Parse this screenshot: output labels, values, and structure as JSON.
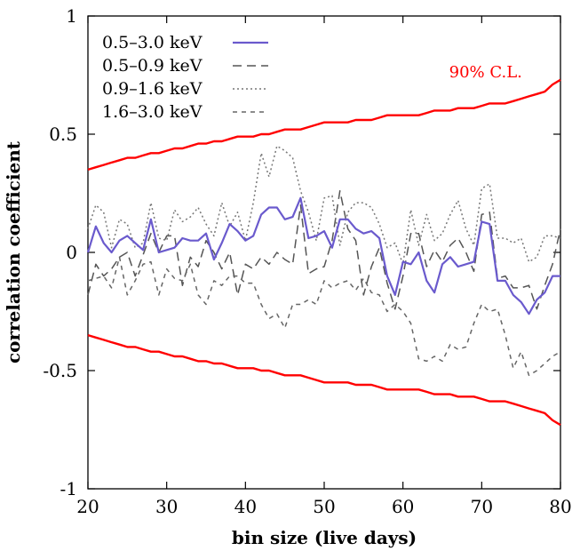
{
  "chart_data": {
    "type": "line",
    "title": "",
    "xlabel": "bin size (live days)",
    "ylabel": "correlation coefficient",
    "xlim": [
      20,
      80
    ],
    "ylim": [
      -1,
      1
    ],
    "xticks": [
      20,
      30,
      40,
      50,
      60,
      70,
      80
    ],
    "xtick_labels": [
      "20",
      "30",
      "40",
      "50",
      "60",
      "70",
      "80"
    ],
    "yticks": [
      -1,
      -0.5,
      0,
      0.5,
      1
    ],
    "ytick_labels": [
      "-1",
      "-0.5",
      "0",
      "0.5",
      "1"
    ],
    "grid": false,
    "legend_position": "top-left",
    "annotation": {
      "text": "90% C.L.",
      "x": 70.5,
      "y": 0.74,
      "color": "#ff0000"
    },
    "x": [
      20,
      21,
      22,
      23,
      24,
      25,
      26,
      27,
      28,
      29,
      30,
      31,
      32,
      33,
      34,
      35,
      36,
      37,
      38,
      39,
      40,
      41,
      42,
      43,
      44,
      45,
      46,
      47,
      48,
      49,
      50,
      51,
      52,
      53,
      54,
      55,
      56,
      57,
      58,
      59,
      60,
      61,
      62,
      63,
      64,
      65,
      66,
      67,
      68,
      69,
      70,
      71,
      72,
      73,
      74,
      75,
      76,
      77,
      78,
      79,
      80
    ],
    "series": [
      {
        "name": "0.5–3.0 keV",
        "color": "#6a5acd",
        "dash": "solid",
        "values": [
          0.0,
          0.11,
          0.04,
          0.0,
          0.05,
          0.07,
          0.04,
          0.01,
          0.14,
          0.0,
          0.01,
          0.02,
          0.06,
          0.05,
          0.05,
          0.08,
          -0.03,
          0.04,
          0.12,
          0.09,
          0.05,
          0.07,
          0.16,
          0.19,
          0.19,
          0.14,
          0.15,
          0.23,
          0.06,
          0.07,
          0.09,
          0.02,
          0.14,
          0.14,
          0.1,
          0.08,
          0.09,
          0.06,
          -0.1,
          -0.18,
          -0.04,
          -0.05,
          0.0,
          -0.12,
          -0.17,
          -0.05,
          -0.02,
          -0.06,
          -0.05,
          -0.04,
          0.13,
          0.12,
          -0.12,
          -0.12,
          -0.18,
          -0.21,
          -0.26,
          -0.2,
          -0.17,
          -0.1,
          -0.1
        ]
      },
      {
        "name": "0.5–0.9 keV",
        "color": "#555555",
        "dash": "long-dash",
        "values": [
          -0.18,
          -0.05,
          -0.1,
          -0.07,
          -0.02,
          0.0,
          -0.1,
          -0.01,
          0.08,
          0.0,
          0.07,
          0.07,
          -0.14,
          -0.02,
          -0.06,
          0.05,
          0.0,
          -0.07,
          0.0,
          -0.18,
          -0.05,
          -0.07,
          -0.02,
          -0.05,
          0.0,
          -0.03,
          -0.05,
          0.2,
          -0.09,
          -0.07,
          -0.06,
          0.05,
          0.26,
          0.1,
          0.05,
          -0.18,
          -0.06,
          0.02,
          -0.13,
          -0.24,
          -0.1,
          0.08,
          0.08,
          -0.06,
          0.01,
          -0.04,
          0.03,
          0.06,
          0.0,
          -0.08,
          0.16,
          0.17,
          -0.11,
          -0.1,
          -0.15,
          -0.15,
          -0.14,
          -0.24,
          -0.14,
          -0.05,
          0.1
        ]
      },
      {
        "name": "0.9–1.6 keV",
        "color": "#777777",
        "dash": "dotted",
        "values": [
          0.1,
          0.2,
          0.17,
          0.02,
          0.14,
          0.12,
          0.02,
          0.04,
          0.21,
          0.06,
          0.05,
          0.18,
          0.13,
          0.15,
          0.19,
          0.12,
          0.07,
          0.21,
          0.11,
          0.17,
          0.05,
          0.21,
          0.42,
          0.32,
          0.45,
          0.43,
          0.4,
          0.26,
          0.17,
          0.05,
          0.23,
          0.24,
          0.03,
          0.17,
          0.21,
          0.21,
          0.19,
          0.12,
          0.02,
          0.04,
          -0.05,
          0.18,
          0.03,
          0.16,
          0.05,
          0.08,
          0.16,
          0.22,
          0.1,
          0.03,
          0.27,
          0.29,
          0.06,
          0.06,
          0.04,
          0.06,
          -0.04,
          -0.02,
          0.07,
          0.07,
          0.06
        ]
      },
      {
        "name": "1.6–3.0 keV",
        "color": "#666666",
        "dash": "short-dash",
        "values": [
          -0.12,
          -0.11,
          -0.1,
          -0.15,
          -0.02,
          -0.18,
          -0.12,
          -0.05,
          -0.04,
          -0.18,
          -0.07,
          -0.11,
          -0.12,
          -0.05,
          -0.18,
          -0.22,
          -0.12,
          -0.14,
          -0.1,
          -0.1,
          -0.13,
          -0.13,
          -0.22,
          -0.28,
          -0.26,
          -0.32,
          -0.22,
          -0.22,
          -0.2,
          -0.22,
          -0.12,
          -0.15,
          -0.13,
          -0.12,
          -0.16,
          -0.11,
          -0.17,
          -0.18,
          -0.25,
          -0.22,
          -0.25,
          -0.3,
          -0.45,
          -0.46,
          -0.44,
          -0.46,
          -0.39,
          -0.41,
          -0.4,
          -0.3,
          -0.22,
          -0.25,
          -0.24,
          -0.35,
          -0.49,
          -0.42,
          -0.52,
          -0.5,
          -0.47,
          -0.44,
          -0.42
        ]
      },
      {
        "name": "90% C.L. upper",
        "color": "#ff0000",
        "dash": "solid-thick",
        "values": [
          0.35,
          0.36,
          0.37,
          0.38,
          0.39,
          0.4,
          0.4,
          0.41,
          0.42,
          0.42,
          0.43,
          0.44,
          0.44,
          0.45,
          0.46,
          0.46,
          0.47,
          0.47,
          0.48,
          0.49,
          0.49,
          0.49,
          0.5,
          0.5,
          0.51,
          0.52,
          0.52,
          0.52,
          0.53,
          0.54,
          0.55,
          0.55,
          0.55,
          0.55,
          0.56,
          0.56,
          0.56,
          0.57,
          0.58,
          0.58,
          0.58,
          0.58,
          0.58,
          0.59,
          0.6,
          0.6,
          0.6,
          0.61,
          0.61,
          0.61,
          0.62,
          0.63,
          0.63,
          0.63,
          0.64,
          0.65,
          0.66,
          0.67,
          0.68,
          0.71,
          0.73
        ]
      },
      {
        "name": "90% C.L. lower",
        "color": "#ff0000",
        "dash": "solid-thick",
        "values": [
          -0.35,
          -0.36,
          -0.37,
          -0.38,
          -0.39,
          -0.4,
          -0.4,
          -0.41,
          -0.42,
          -0.42,
          -0.43,
          -0.44,
          -0.44,
          -0.45,
          -0.46,
          -0.46,
          -0.47,
          -0.47,
          -0.48,
          -0.49,
          -0.49,
          -0.49,
          -0.5,
          -0.5,
          -0.51,
          -0.52,
          -0.52,
          -0.52,
          -0.53,
          -0.54,
          -0.55,
          -0.55,
          -0.55,
          -0.55,
          -0.56,
          -0.56,
          -0.56,
          -0.57,
          -0.58,
          -0.58,
          -0.58,
          -0.58,
          -0.58,
          -0.59,
          -0.6,
          -0.6,
          -0.6,
          -0.61,
          -0.61,
          -0.61,
          -0.62,
          -0.63,
          -0.63,
          -0.63,
          -0.64,
          -0.65,
          -0.66,
          -0.67,
          -0.68,
          -0.71,
          -0.73
        ]
      }
    ],
    "legend_entries": [
      {
        "label": "0.5–3.0 keV",
        "color": "#6a5acd",
        "dash": "solid"
      },
      {
        "label": "0.5–0.9 keV",
        "color": "#555555",
        "dash": "long-dash"
      },
      {
        "label": "0.9–1.6 keV",
        "color": "#777777",
        "dash": "dotted"
      },
      {
        "label": "1.6–3.0 keV",
        "color": "#666666",
        "dash": "short-dash"
      }
    ]
  }
}
